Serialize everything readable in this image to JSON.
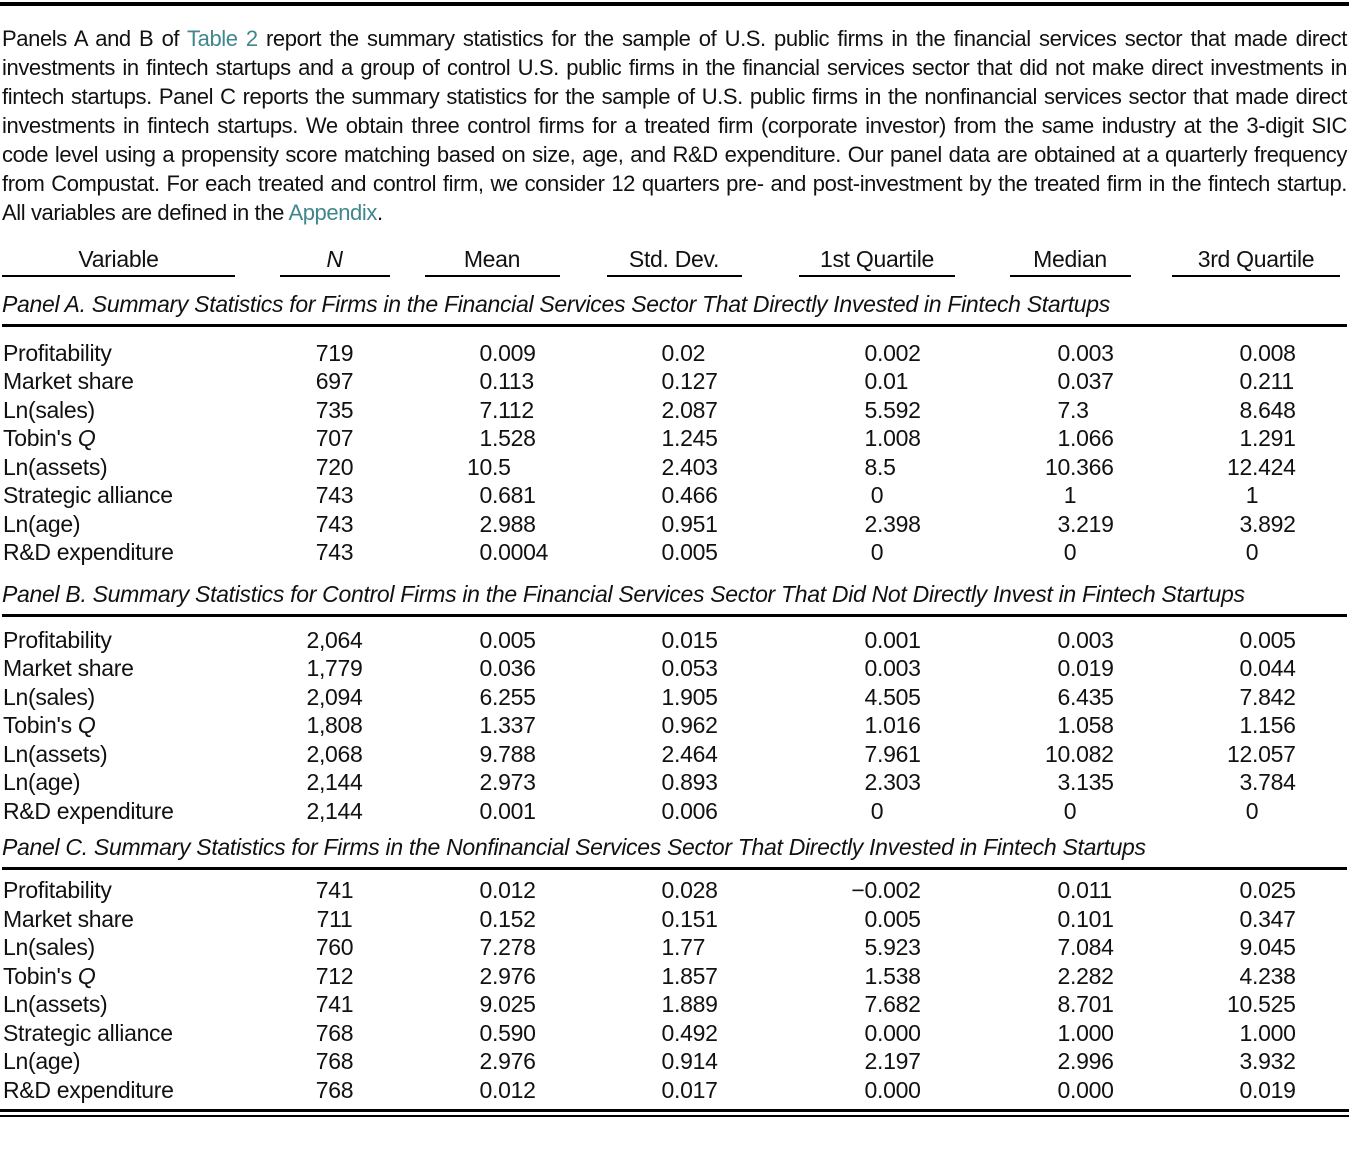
{
  "page": {
    "background": "#ffffff",
    "text_color": "#111111",
    "link_color": "#3f878c"
  },
  "intro": {
    "segment1": "Panels A and B of ",
    "link_table2": "Table 2",
    "segment2": " report the summary statistics for the sample of U.S. public firms in the financial services sector that made direct investments in fintech startups and a group of control U.S. public firms in the financial services sector that did not make direct investments in fintech startups. Panel C reports the summary statistics for the sample of U.S. public firms in the nonfinancial services sector that made direct investments in fintech startups. We obtain three control firms for a treated firm (corporate investor) from the same industry at the 3-digit SIC code level using a propensity score matching based on size, age, and R&D expenditure. Our panel data are obtained at a quarterly frequency from Compustat. For each treated and control firm, we consider 12 quarters pre- and post-investment by the treated firm in the fintech startup. All variables are defined in the ",
    "link_appendix": "Appendix",
    "segment3": "."
  },
  "table": {
    "headers": [
      {
        "text": "Variable",
        "italic": false
      },
      {
        "text": "N",
        "italic": true
      },
      {
        "text": "Mean",
        "italic": false
      },
      {
        "text": "Std. Dev.",
        "italic": false
      },
      {
        "text": "1st Quartile",
        "italic": false
      },
      {
        "text": "Median",
        "italic": false
      },
      {
        "text": "3rd Quartile",
        "italic": false
      }
    ],
    "panels": [
      {
        "title": "Panel A. Summary Statistics for Firms in the Financial Services Sector That Directly Invested in Fintech Startups",
        "rows": [
          {
            "label": "Profitability",
            "label_italic": "",
            "values": [
              "719",
              "0.009",
              "0.02",
              "0.002",
              "0.003",
              "0.008"
            ]
          },
          {
            "label": "Market share",
            "label_italic": "",
            "values": [
              "697",
              "0.113",
              "0.127",
              "0.01",
              "0.037",
              "0.211"
            ]
          },
          {
            "label": "Ln(sales)",
            "label_italic": "",
            "values": [
              "735",
              "7.112",
              "2.087",
              "5.592",
              "7.3",
              "8.648"
            ]
          },
          {
            "label": "Tobin's ",
            "label_italic": "Q",
            "values": [
              "707",
              "1.528",
              "1.245",
              "1.008",
              "1.066",
              "1.291"
            ]
          },
          {
            "label": "Ln(assets)",
            "label_italic": "",
            "values": [
              "720",
              "10.5",
              "2.403",
              "8.5",
              "10.366",
              "12.424"
            ]
          },
          {
            "label": "Strategic alliance",
            "label_italic": "",
            "values": [
              "743",
              "0.681",
              "0.466",
              "0",
              "1",
              "1"
            ]
          },
          {
            "label": "Ln(age)",
            "label_italic": "",
            "values": [
              "743",
              "2.988",
              "0.951",
              "2.398",
              "3.219",
              "3.892"
            ]
          },
          {
            "label": "R&D expenditure",
            "label_italic": "",
            "values": [
              "743",
              "0.0004",
              "0.005",
              "0",
              "0",
              "0"
            ]
          }
        ]
      },
      {
        "title": "Panel B. Summary Statistics for Control Firms in the Financial Services Sector That Did Not Directly Invest in Fintech Startups",
        "rows": [
          {
            "label": "Profitability",
            "label_italic": "",
            "values": [
              "2,064",
              "0.005",
              "0.015",
              "0.001",
              "0.003",
              "0.005"
            ]
          },
          {
            "label": "Market share",
            "label_italic": "",
            "values": [
              "1,779",
              "0.036",
              "0.053",
              "0.003",
              "0.019",
              "0.044"
            ]
          },
          {
            "label": "Ln(sales)",
            "label_italic": "",
            "values": [
              "2,094",
              "6.255",
              "1.905",
              "4.505",
              "6.435",
              "7.842"
            ]
          },
          {
            "label": "Tobin's ",
            "label_italic": "Q",
            "values": [
              "1,808",
              "1.337",
              "0.962",
              "1.016",
              "1.058",
              "1.156"
            ]
          },
          {
            "label": "Ln(assets)",
            "label_italic": "",
            "values": [
              "2,068",
              "9.788",
              "2.464",
              "7.961",
              "10.082",
              "12.057"
            ]
          },
          {
            "label": "Ln(age)",
            "label_italic": "",
            "values": [
              "2,144",
              "2.973",
              "0.893",
              "2.303",
              "3.135",
              "3.784"
            ]
          },
          {
            "label": "R&D expenditure",
            "label_italic": "",
            "values": [
              "2,144",
              "0.001",
              "0.006",
              "0",
              "0",
              "0"
            ]
          }
        ]
      },
      {
        "title": "Panel C. Summary Statistics for Firms in the Nonfinancial Services Sector That Directly Invested in Fintech Startups",
        "rows": [
          {
            "label": "Profitability",
            "label_italic": "",
            "values": [
              "741",
              "0.012",
              "0.028",
              "−0.002",
              "0.011",
              "0.025"
            ]
          },
          {
            "label": "Market share",
            "label_italic": "",
            "values": [
              "711",
              "0.152",
              "0.151",
              "0.005",
              "0.101",
              "0.347"
            ]
          },
          {
            "label": "Ln(sales)",
            "label_italic": "",
            "values": [
              "760",
              "7.278",
              "1.77",
              "5.923",
              "7.084",
              "9.045"
            ]
          },
          {
            "label": "Tobin's ",
            "label_italic": "Q",
            "values": [
              "712",
              "2.976",
              "1.857",
              "1.538",
              "2.282",
              "4.238"
            ]
          },
          {
            "label": "Ln(assets)",
            "label_italic": "",
            "values": [
              "741",
              "9.025",
              "1.889",
              "7.682",
              "8.701",
              "10.525"
            ]
          },
          {
            "label": "Strategic alliance",
            "label_italic": "",
            "values": [
              "768",
              "0.590",
              "0.492",
              "0.000",
              "1.000",
              "1.000"
            ]
          },
          {
            "label": "Ln(age)",
            "label_italic": "",
            "values": [
              "768",
              "2.976",
              "0.914",
              "2.197",
              "2.996",
              "3.932"
            ]
          },
          {
            "label": "R&D expenditure",
            "label_italic": "",
            "values": [
              "768",
              "0.012",
              "0.017",
              "0.000",
              "0.000",
              "0.019"
            ]
          }
        ]
      }
    ]
  }
}
